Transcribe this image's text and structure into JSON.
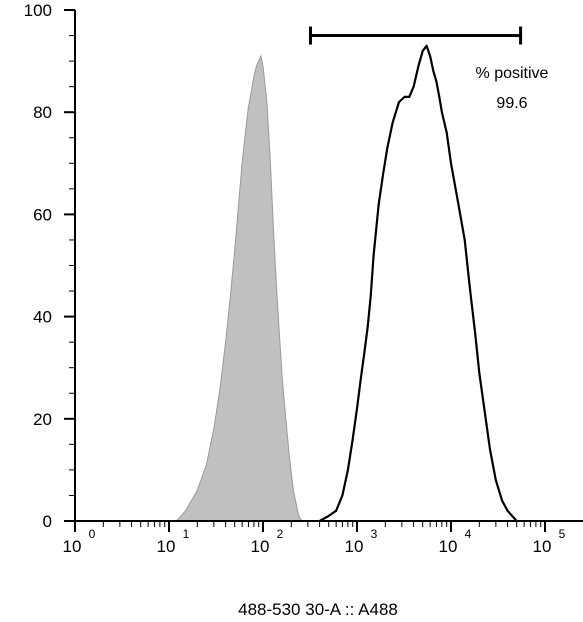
{
  "chart_data": {
    "type": "area",
    "xlabel": "488-530 30-A :: A488",
    "ylabel": "",
    "x_scale": "log",
    "xlim": [
      1,
      100000
    ],
    "ylim": [
      0,
      100
    ],
    "y_ticks": [
      0,
      20,
      40,
      60,
      80,
      100
    ],
    "x_ticks": [
      {
        "base": "10",
        "exp": "0",
        "value": 1
      },
      {
        "base": "10",
        "exp": "1",
        "value": 10
      },
      {
        "base": "10",
        "exp": "2",
        "value": 100
      },
      {
        "base": "10",
        "exp": "3",
        "value": 1000
      },
      {
        "base": "10",
        "exp": "4",
        "value": 10000
      },
      {
        "base": "10",
        "exp": "5",
        "value": 100000
      }
    ],
    "series": [
      {
        "style": "filled",
        "color": "#c0c0c0",
        "stroke": "#999999",
        "points": [
          [
            12,
            0
          ],
          [
            15,
            2
          ],
          [
            20,
            6
          ],
          [
            25,
            11
          ],
          [
            30,
            18
          ],
          [
            35,
            26
          ],
          [
            40,
            35
          ],
          [
            45,
            44
          ],
          [
            50,
            53
          ],
          [
            55,
            62
          ],
          [
            60,
            70
          ],
          [
            65,
            76
          ],
          [
            70,
            81
          ],
          [
            75,
            84
          ],
          [
            80,
            87
          ],
          [
            85,
            89
          ],
          [
            90,
            90
          ],
          [
            95,
            91
          ],
          [
            100,
            89
          ],
          [
            110,
            82
          ],
          [
            120,
            70
          ],
          [
            130,
            56
          ],
          [
            140,
            45
          ],
          [
            150,
            36
          ],
          [
            160,
            28
          ],
          [
            175,
            20
          ],
          [
            190,
            13
          ],
          [
            210,
            6
          ],
          [
            240,
            1
          ],
          [
            260,
            0
          ]
        ]
      },
      {
        "style": "line",
        "color": "#000000",
        "points": [
          [
            400,
            0
          ],
          [
            500,
            1
          ],
          [
            600,
            2
          ],
          [
            700,
            5
          ],
          [
            800,
            10
          ],
          [
            900,
            16
          ],
          [
            1000,
            22
          ],
          [
            1100,
            28
          ],
          [
            1200,
            33
          ],
          [
            1300,
            38
          ],
          [
            1400,
            44
          ],
          [
            1500,
            52
          ],
          [
            1700,
            62
          ],
          [
            1900,
            68
          ],
          [
            2100,
            73
          ],
          [
            2400,
            78
          ],
          [
            2800,
            82
          ],
          [
            3200,
            83
          ],
          [
            3600,
            83
          ],
          [
            4000,
            85
          ],
          [
            4500,
            89
          ],
          [
            5000,
            92
          ],
          [
            5500,
            93
          ],
          [
            6000,
            91
          ],
          [
            6500,
            88
          ],
          [
            7000,
            86
          ],
          [
            7500,
            83
          ],
          [
            8000,
            80
          ],
          [
            9000,
            76
          ],
          [
            10000,
            70
          ],
          [
            12000,
            62
          ],
          [
            14000,
            55
          ],
          [
            16000,
            45
          ],
          [
            18000,
            37
          ],
          [
            20000,
            29
          ],
          [
            23000,
            21
          ],
          [
            26000,
            14
          ],
          [
            30000,
            8
          ],
          [
            35000,
            4
          ],
          [
            40000,
            2
          ],
          [
            50000,
            0
          ]
        ]
      }
    ],
    "gate": {
      "x_range": [
        320,
        55000
      ],
      "y": 95,
      "label": "% positive",
      "value": "99.6"
    }
  }
}
